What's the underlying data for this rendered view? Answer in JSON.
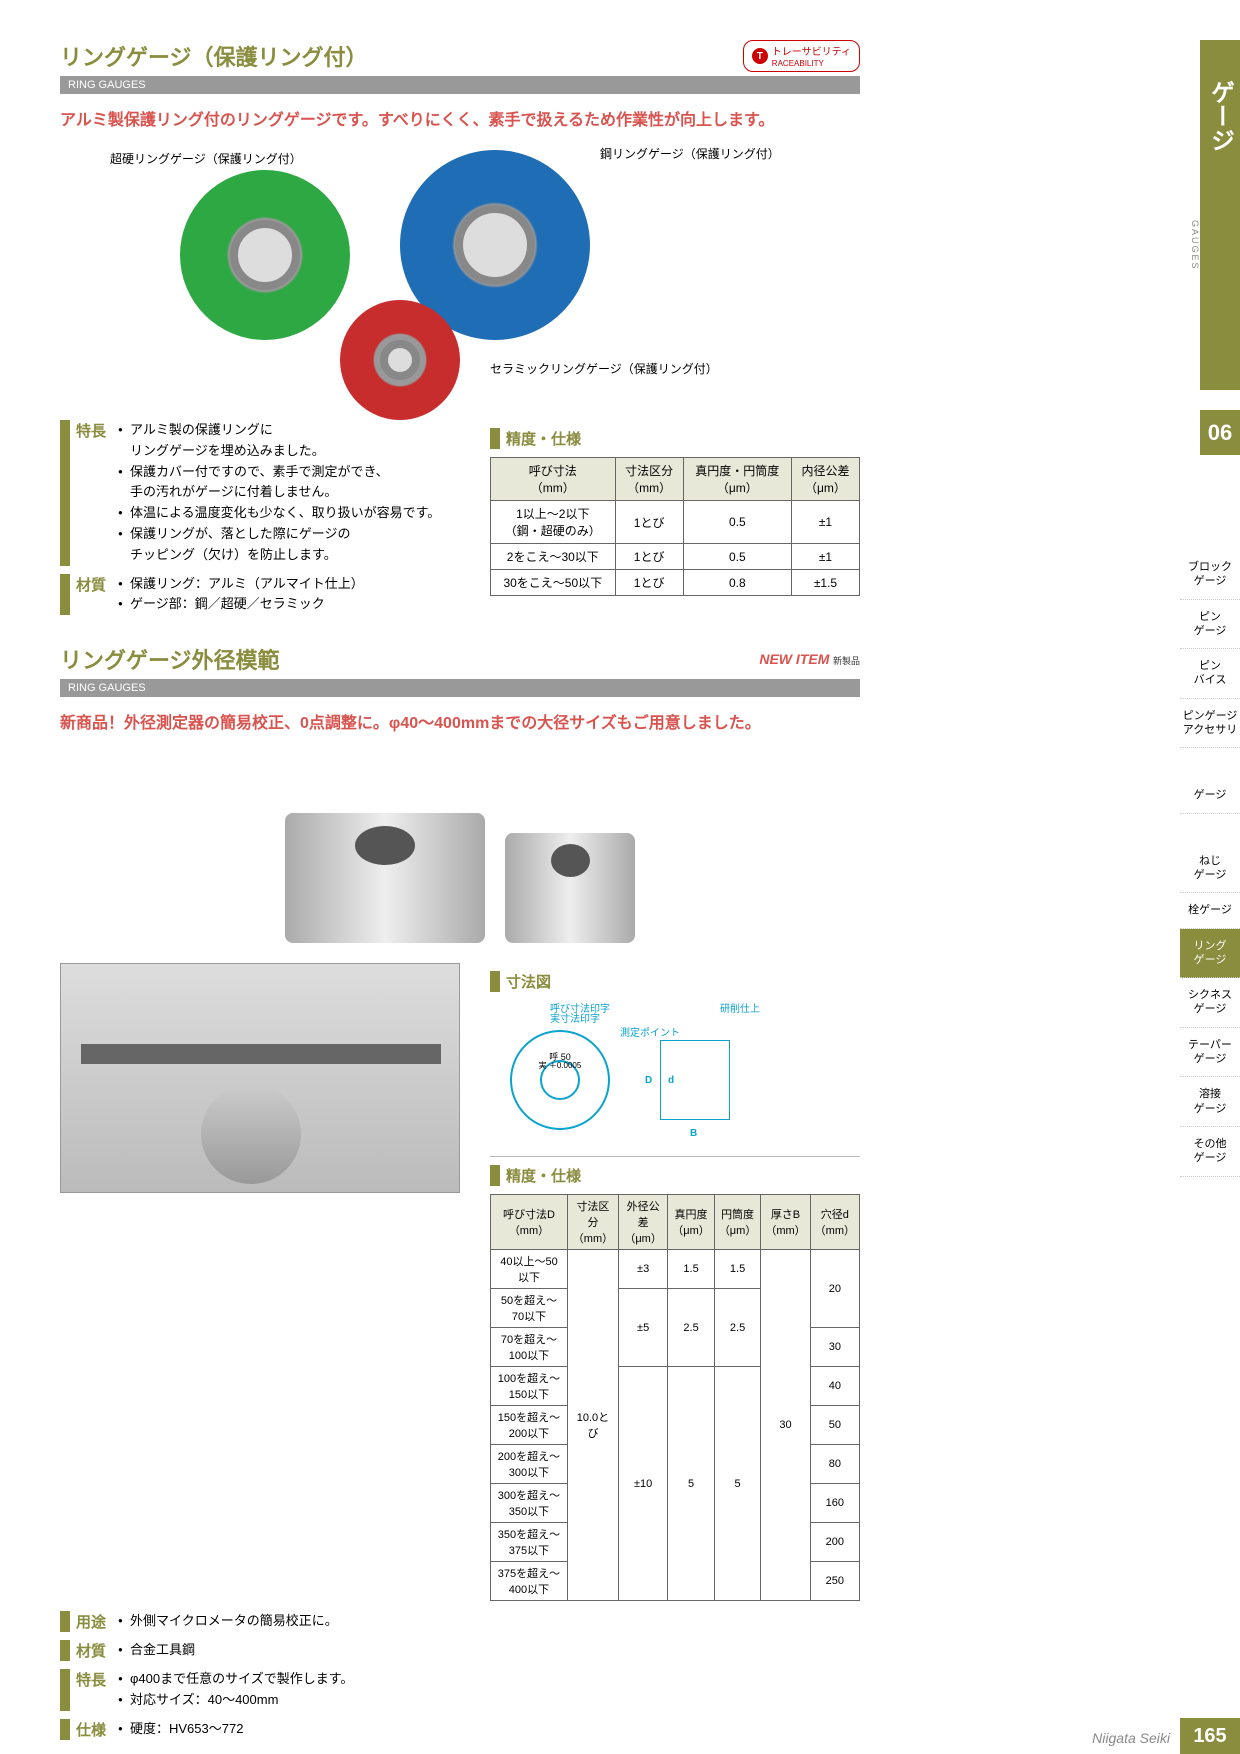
{
  "page": {
    "number": "165",
    "company": "Niigata Seiki",
    "chapter": "06"
  },
  "side": {
    "category": "ゲージ",
    "category_en": "GAUGES"
  },
  "sidebar_items": [
    "ブロック\nゲージ",
    "ピン\nゲージ",
    "ピン\nバイス",
    "ピンゲージ\nアクセサリ",
    "",
    "ゲージ",
    "",
    "ねじ\nゲージ",
    "栓ゲージ",
    "リング\nゲージ",
    "シクネス\nゲージ",
    "テーパー\nゲージ",
    "溶接\nゲージ",
    "その他\nゲージ"
  ],
  "sidebar_active_index": 9,
  "badges": {
    "traceability": "トレーサビリティ",
    "traceability_en": "RACEABILITY",
    "new_item": "NEW ITEM",
    "new_item_jp": "新製品"
  },
  "product1": {
    "title": "リングゲージ（保護リング付）",
    "subtitle": "RING GAUGES",
    "lead": "アルミ製保護リング付のリングゲージです。すべりにくく、素手で扱えるため作業性が向上します。",
    "ring_labels": {
      "green": "超硬リングゲージ（保護リング付）",
      "blue": "鋼リングゲージ（保護リング付）",
      "red": "セラミックリングゲージ（保護リング付）"
    },
    "ring_colors": {
      "green": "#2ea843",
      "blue": "#1f6db5",
      "red": "#c82d2d"
    },
    "features_label": "特長",
    "features": [
      "アルミ製の保護リングに\nリングゲージを埋め込みました。",
      "保護カバー付ですので、素手で測定ができ、\n手の汚れがゲージに付着しません。",
      "体温による温度変化も少なく、取り扱いが容易です。",
      "保護リングが、落とした際にゲージの\nチッピング（欠け）を防止します。"
    ],
    "material_label": "材質",
    "materials": [
      "保護リング：アルミ（アルマイト仕上）",
      "ゲージ部：鋼／超硬／セラミック"
    ],
    "spec_heading": "精度・仕様",
    "spec_table": {
      "headers": [
        "呼び寸法\n（mm）",
        "寸法区分\n（mm）",
        "真円度・円筒度\n（μm）",
        "内径公差\n（μm）"
      ],
      "rows": [
        [
          "1以上～2以下\n（鋼・超硬のみ）",
          "1とび",
          "0.5",
          "±1"
        ],
        [
          "2をこえ～30以下",
          "1とび",
          "0.5",
          "±1"
        ],
        [
          "30をこえ～50以下",
          "1とび",
          "0.8",
          "±1.5"
        ]
      ]
    }
  },
  "product2": {
    "title": "リングゲージ外径模範",
    "subtitle": "RING GAUGES",
    "lead": "新商品！外径測定器の簡易校正、0点調整に。φ40～400mmまでの大径サイズもご用意しました。",
    "diagram_heading": "寸法図",
    "diagram_labels": {
      "nominal": "呼び寸法印字",
      "actual": "実寸法印字",
      "point": "測定ポイント",
      "finish": "研削仕上",
      "example": "呼 50",
      "example2": "実 ＋0.0005",
      "D": "D",
      "d": "d",
      "B": "B"
    },
    "spec_heading": "精度・仕様",
    "spec_table": {
      "headers": [
        "呼び寸法D\n（mm）",
        "寸法区分\n（mm）",
        "外径公差\n（μm）",
        "真円度\n（μm）",
        "円筒度\n（μm）",
        "厚さB\n（mm）",
        "穴径d\n（mm）"
      ],
      "rows": [
        [
          "40以上～50以下",
          "10.0とび",
          "±3",
          "1.5",
          "1.5",
          "30",
          "20"
        ],
        [
          "50を超え～70以下",
          "10.0とび",
          "±5",
          "2.5",
          "2.5",
          "30",
          "20"
        ],
        [
          "70を超え～100以下",
          "10.0とび",
          "±5",
          "2.5",
          "2.5",
          "30",
          "30"
        ],
        [
          "100を超え～150以下",
          "10.0とび",
          "±10",
          "5",
          "5",
          "30",
          "40"
        ],
        [
          "150を超え～200以下",
          "10.0とび",
          "±10",
          "5",
          "5",
          "30",
          "50"
        ],
        [
          "200を超え～300以下",
          "10.0とび",
          "±10",
          "5",
          "5",
          "30",
          "80"
        ],
        [
          "300を超え～350以下",
          "10.0とび",
          "±10",
          "5",
          "5",
          "30",
          "160"
        ],
        [
          "350を超え～375以下",
          "10.0とび",
          "±10",
          "5",
          "5",
          "30",
          "200"
        ],
        [
          "375を超え～400以下",
          "10.0とび",
          "±10",
          "5",
          "5",
          "30",
          "250"
        ]
      ],
      "merges": {
        "col1_rowspan": 9,
        "col2_groups": [
          [
            0,
            0
          ],
          [
            1,
            2
          ],
          [
            3,
            8
          ]
        ],
        "col34_groups": [
          [
            0,
            0
          ],
          [
            1,
            2
          ],
          [
            3,
            8
          ]
        ],
        "col5_rowspan": 9,
        "col6_groups": [
          [
            0,
            1
          ],
          [
            2,
            2
          ],
          [
            3,
            3
          ],
          [
            4,
            4
          ],
          [
            5,
            5
          ],
          [
            6,
            6
          ],
          [
            7,
            7
          ],
          [
            8,
            8
          ]
        ]
      }
    },
    "use_label": "用途",
    "uses": [
      "外側マイクロメータの簡易校正に。"
    ],
    "material_label": "材質",
    "materials": [
      "合金工具鋼"
    ],
    "features_label": "特長",
    "features": [
      "φ400まで任意のサイズで製作します。",
      "対応サイズ：40～400mm"
    ],
    "spec_label": "仕様",
    "specs": [
      "硬度：HV653～772"
    ]
  }
}
